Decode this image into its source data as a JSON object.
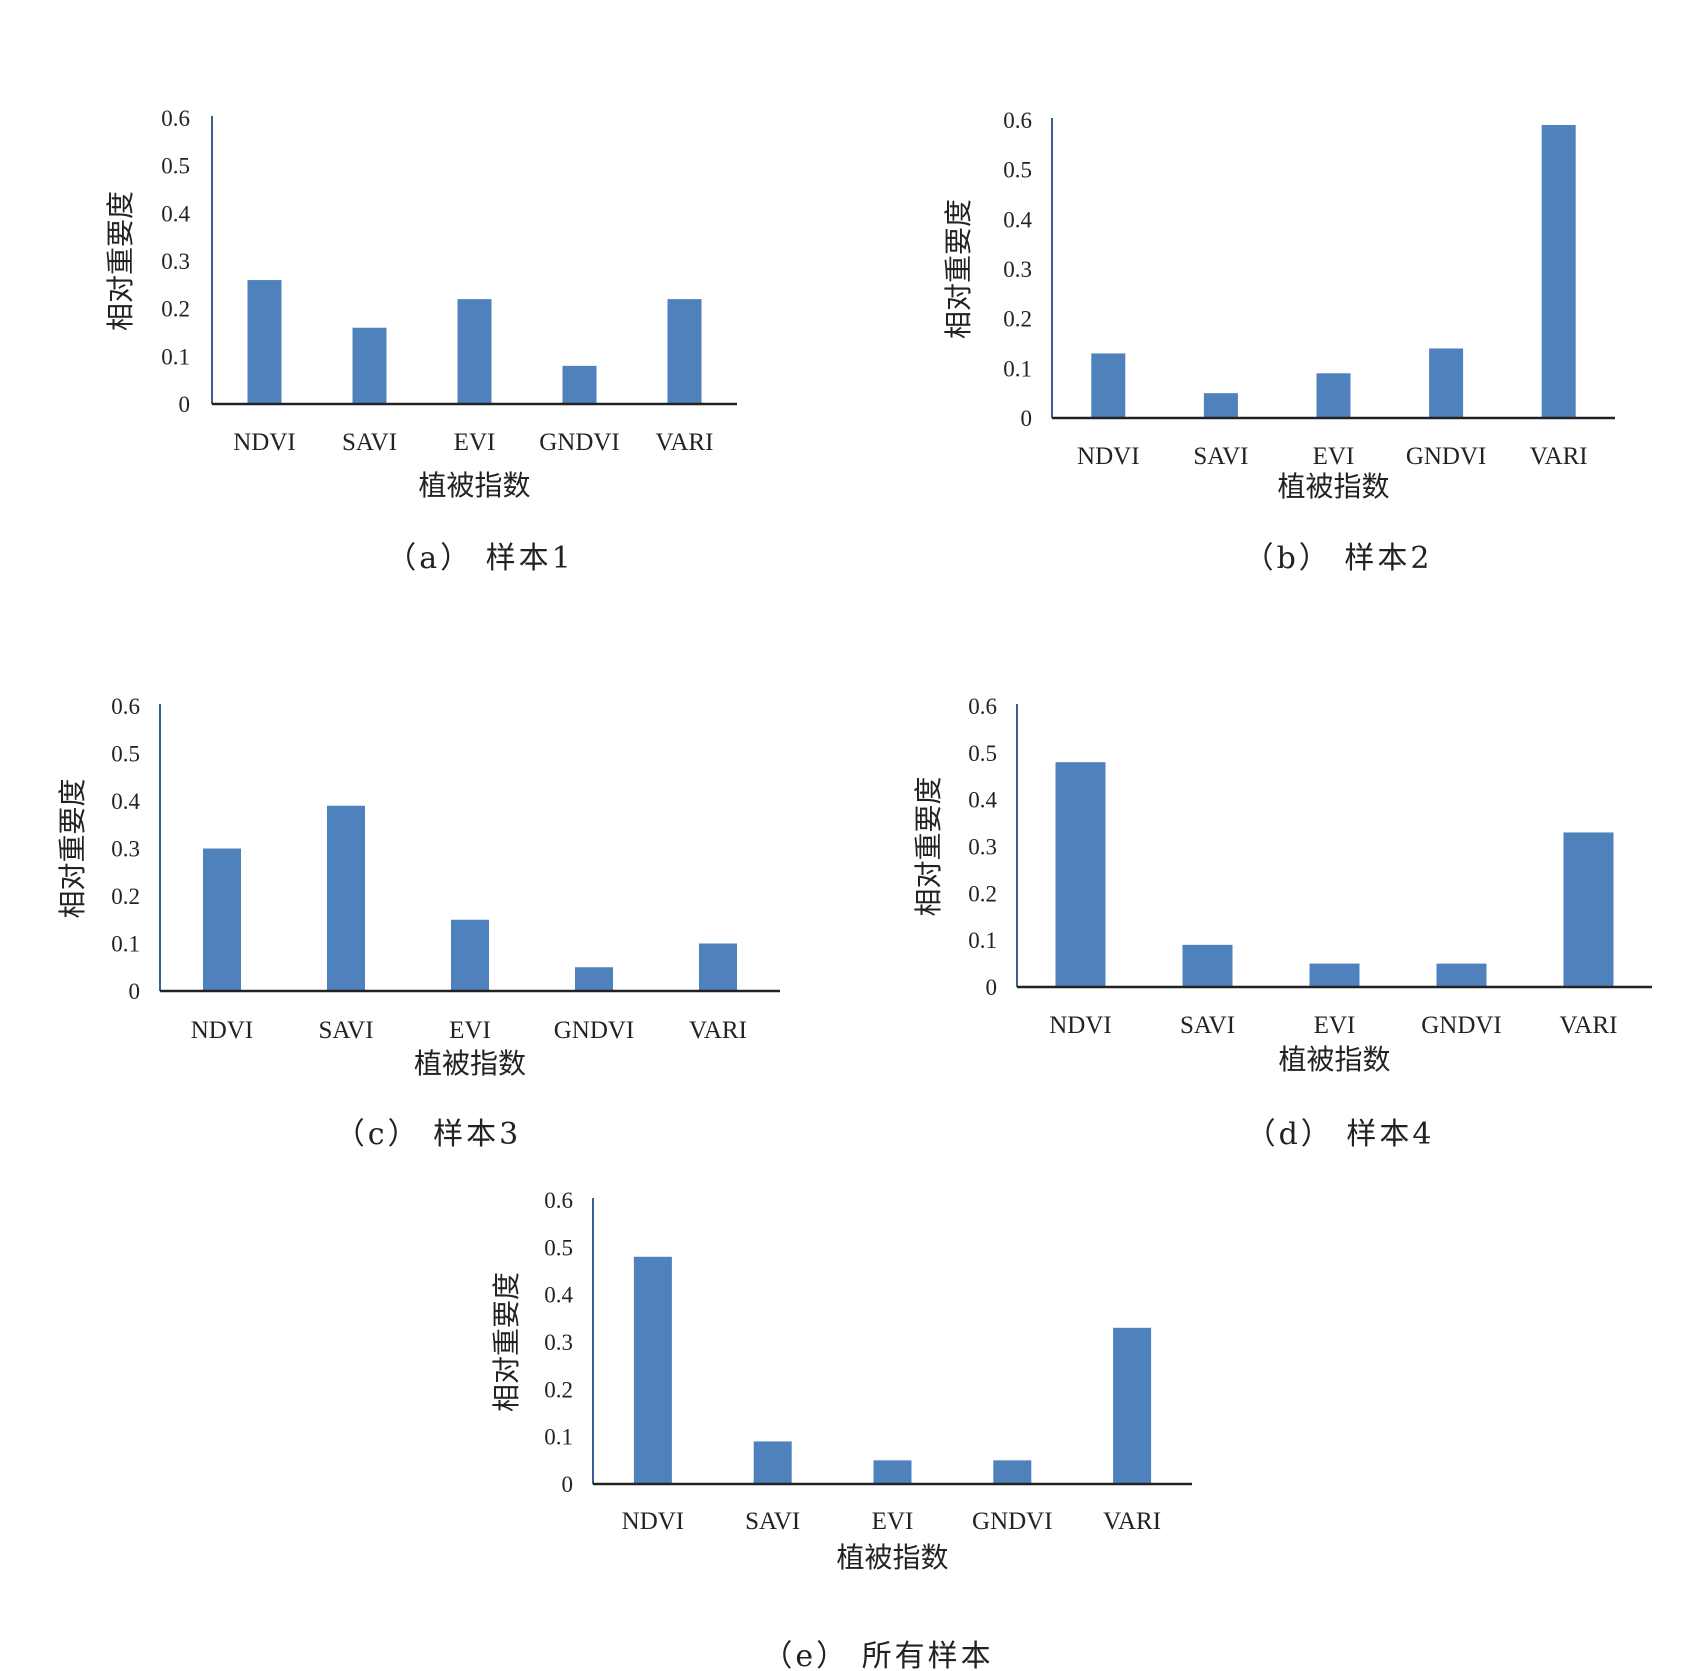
{
  "chart_data": [
    {
      "type": "bar",
      "caption": "（a） 样本1",
      "xlabel": "植被指数",
      "ylabel": "相对重要度",
      "categories": [
        "NDVI",
        "SAVI",
        "EVI",
        "GNDVI",
        "VARI"
      ],
      "values": [
        0.26,
        0.16,
        0.22,
        0.08,
        0.22
      ],
      "ylim": [
        0,
        0.6
      ],
      "yticks": [
        "0",
        "0.1",
        "0.2",
        "0.3",
        "0.4",
        "0.5",
        "0.6"
      ],
      "bar_color": "#4f81bd",
      "grid": false
    },
    {
      "type": "bar",
      "caption": "（b） 样本2",
      "xlabel": "植被指数",
      "ylabel": "相对重要度",
      "categories": [
        "NDVI",
        "SAVI",
        "EVI",
        "GNDVI",
        "VARI"
      ],
      "values": [
        0.13,
        0.05,
        0.09,
        0.14,
        0.59
      ],
      "ylim": [
        0,
        0.6
      ],
      "yticks": [
        "0",
        "0.1",
        "0.2",
        "0.3",
        "0.4",
        "0.5",
        "0.6"
      ],
      "bar_color": "#4f81bd",
      "grid": false
    },
    {
      "type": "bar",
      "caption": "（c） 样本3",
      "xlabel": "植被指数",
      "ylabel": "相对重要度",
      "categories": [
        "NDVI",
        "SAVI",
        "EVI",
        "GNDVI",
        "VARI"
      ],
      "values": [
        0.3,
        0.39,
        0.15,
        0.05,
        0.1
      ],
      "ylim": [
        0,
        0.6
      ],
      "yticks": [
        "0",
        "0.1",
        "0.2",
        "0.3",
        "0.4",
        "0.5",
        "0.6"
      ],
      "bar_color": "#4f81bd",
      "grid": false
    },
    {
      "type": "bar",
      "caption": "（d） 样本4",
      "xlabel": "植被指数",
      "ylabel": "相对重要度",
      "categories": [
        "NDVI",
        "SAVI",
        "EVI",
        "GNDVI",
        "VARI"
      ],
      "values": [
        0.48,
        0.09,
        0.05,
        0.05,
        0.33
      ],
      "ylim": [
        0,
        0.6
      ],
      "yticks": [
        "0",
        "0.1",
        "0.2",
        "0.3",
        "0.4",
        "0.5",
        "0.6"
      ],
      "bar_color": "#4f81bd",
      "grid": false
    },
    {
      "type": "bar",
      "caption": "（e） 所有样本",
      "xlabel": "植被指数",
      "ylabel": "相对重要度",
      "categories": [
        "NDVI",
        "SAVI",
        "EVI",
        "GNDVI",
        "VARI"
      ],
      "values": [
        0.48,
        0.09,
        0.05,
        0.05,
        0.33
      ],
      "ylim": [
        0,
        0.6
      ],
      "yticks": [
        "0",
        "0.1",
        "0.2",
        "0.3",
        "0.4",
        "0.5",
        "0.6"
      ],
      "bar_color": "#4f81bd",
      "grid": false
    }
  ]
}
